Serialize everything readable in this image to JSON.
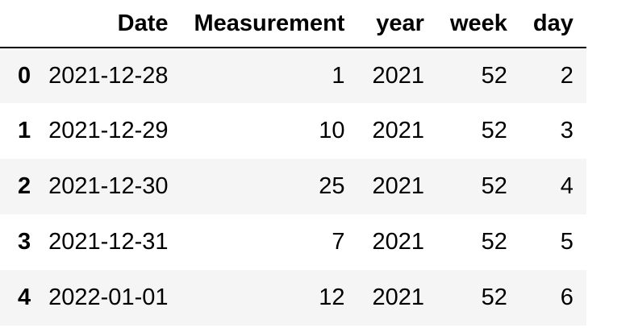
{
  "table": {
    "columns": [
      "",
      "Date",
      "Measurement",
      "year",
      "week",
      "day"
    ],
    "rows": [
      {
        "index": "0",
        "date": "2021-12-28",
        "measurement": "1",
        "year": "2021",
        "week": "52",
        "day": "2"
      },
      {
        "index": "1",
        "date": "2021-12-29",
        "measurement": "10",
        "year": "2021",
        "week": "52",
        "day": "3"
      },
      {
        "index": "2",
        "date": "2021-12-30",
        "measurement": "25",
        "year": "2021",
        "week": "52",
        "day": "4"
      },
      {
        "index": "3",
        "date": "2021-12-31",
        "measurement": "7",
        "year": "2021",
        "week": "52",
        "day": "5"
      },
      {
        "index": "4",
        "date": "2022-01-01",
        "measurement": "12",
        "year": "2021",
        "week": "52",
        "day": "6"
      }
    ]
  }
}
